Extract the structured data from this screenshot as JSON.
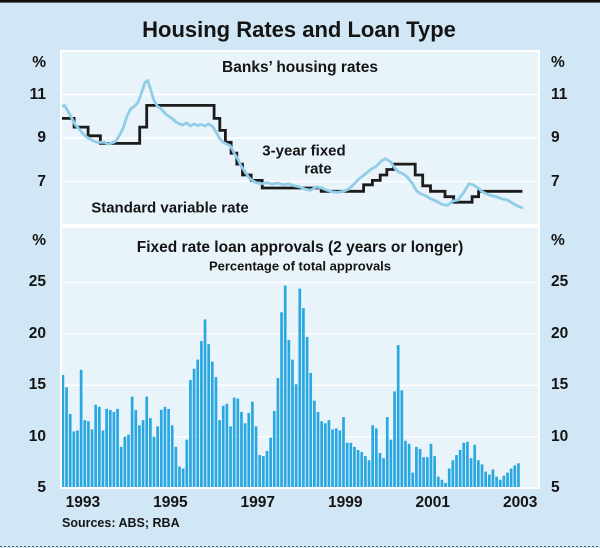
{
  "figure": {
    "title": "Housing Rates and Loan Type",
    "sources": "Sources: ABS; RBA",
    "unit": "%"
  },
  "colors": {
    "background": "#d2e7f5",
    "plot_background": "#e9f3fa",
    "gridline": "#ffffff",
    "bar": "#29a7e0",
    "fixed_rate_line": "#8fcde9",
    "variable_rate_line": "#1c1c1c",
    "text": "#141414",
    "top_border": "#111111"
  },
  "x_axis": {
    "tick_labels": [
      "1993",
      "1995",
      "1997",
      "1999",
      "2001",
      "2003"
    ],
    "tick_years": [
      1993,
      1995,
      1997,
      1999,
      2001,
      2003
    ],
    "xlim": [
      1993.0,
      2003.93
    ]
  },
  "chart_data": [
    {
      "panel": "top",
      "type": "line",
      "title": "Banks’ housing rates",
      "unit": "%",
      "ylim": [
        5,
        13
      ],
      "yticks": [
        7,
        9,
        11
      ],
      "grid": true,
      "series_labels": {
        "fixed_line1": "3-year fixed",
        "fixed_line2": "rate",
        "svr": "Standard variable rate"
      },
      "series": [
        {
          "name": "Standard variable rate",
          "style": "step",
          "color": "#1c1c1c",
          "points": [
            [
              1993.0,
              9.9
            ],
            [
              1993.3,
              9.5
            ],
            [
              1993.62,
              9.1
            ],
            [
              1993.9,
              8.75
            ],
            [
              1994.8,
              9.5
            ],
            [
              1994.96,
              10.5
            ],
            [
              1996.5,
              9.9
            ],
            [
              1996.63,
              9.35
            ],
            [
              1996.76,
              8.8
            ],
            [
              1996.89,
              8.3
            ],
            [
              1997.02,
              7.8
            ],
            [
              1997.15,
              7.3
            ],
            [
              1997.35,
              7.05
            ],
            [
              1997.6,
              6.7
            ],
            [
              1998.95,
              6.55
            ],
            [
              1999.92,
              6.85
            ],
            [
              2000.12,
              7.05
            ],
            [
              2000.3,
              7.3
            ],
            [
              2000.45,
              7.55
            ],
            [
              2000.6,
              7.8
            ],
            [
              2001.1,
              7.3
            ],
            [
              2001.27,
              6.8
            ],
            [
              2001.45,
              6.55
            ],
            [
              2001.78,
              6.3
            ],
            [
              2001.98,
              6.05
            ],
            [
              2002.4,
              6.3
            ],
            [
              2002.55,
              6.55
            ],
            [
              2003.55,
              6.55
            ]
          ]
        },
        {
          "name": "3-year fixed rate",
          "style": "smooth",
          "color": "#8fcde9",
          "points": [
            [
              1993.0,
              10.45
            ],
            [
              1993.08,
              10.5
            ],
            [
              1993.17,
              10.2
            ],
            [
              1993.25,
              9.9
            ],
            [
              1993.33,
              9.6
            ],
            [
              1993.42,
              9.4
            ],
            [
              1993.5,
              9.2
            ],
            [
              1993.58,
              9.05
            ],
            [
              1993.67,
              8.95
            ],
            [
              1993.75,
              8.85
            ],
            [
              1993.83,
              8.8
            ],
            [
              1994.0,
              8.8
            ],
            [
              1994.08,
              8.72
            ],
            [
              1994.17,
              8.78
            ],
            [
              1994.25,
              8.85
            ],
            [
              1994.33,
              9.1
            ],
            [
              1994.42,
              9.45
            ],
            [
              1994.5,
              9.95
            ],
            [
              1994.58,
              10.3
            ],
            [
              1994.67,
              10.45
            ],
            [
              1994.75,
              10.6
            ],
            [
              1994.83,
              11.0
            ],
            [
              1994.92,
              11.55
            ],
            [
              1994.98,
              11.65
            ],
            [
              1995.04,
              11.3
            ],
            [
              1995.12,
              10.75
            ],
            [
              1995.21,
              10.45
            ],
            [
              1995.29,
              10.35
            ],
            [
              1995.37,
              10.15
            ],
            [
              1995.46,
              10.0
            ],
            [
              1995.54,
              9.9
            ],
            [
              1995.62,
              9.75
            ],
            [
              1995.71,
              9.65
            ],
            [
              1995.79,
              9.6
            ],
            [
              1995.87,
              9.7
            ],
            [
              1995.96,
              9.55
            ],
            [
              1996.04,
              9.65
            ],
            [
              1996.12,
              9.58
            ],
            [
              1996.21,
              9.62
            ],
            [
              1996.29,
              9.55
            ],
            [
              1996.37,
              9.65
            ],
            [
              1996.46,
              9.55
            ],
            [
              1996.54,
              9.3
            ],
            [
              1996.62,
              9.0
            ],
            [
              1996.71,
              8.8
            ],
            [
              1996.79,
              8.72
            ],
            [
              1996.87,
              8.65
            ],
            [
              1996.96,
              8.3
            ],
            [
              1997.04,
              8.05
            ],
            [
              1997.12,
              7.7
            ],
            [
              1997.21,
              7.45
            ],
            [
              1997.29,
              7.2
            ],
            [
              1997.37,
              7.05
            ],
            [
              1997.46,
              6.95
            ],
            [
              1997.58,
              6.9
            ],
            [
              1997.71,
              6.95
            ],
            [
              1997.83,
              6.88
            ],
            [
              1997.96,
              6.93
            ],
            [
              1998.08,
              6.85
            ],
            [
              1998.21,
              6.9
            ],
            [
              1998.33,
              6.8
            ],
            [
              1998.46,
              6.75
            ],
            [
              1998.58,
              6.65
            ],
            [
              1998.71,
              6.6
            ],
            [
              1998.83,
              6.75
            ],
            [
              1998.96,
              6.7
            ],
            [
              1999.08,
              6.6
            ],
            [
              1999.21,
              6.52
            ],
            [
              1999.33,
              6.5
            ],
            [
              1999.46,
              6.55
            ],
            [
              1999.58,
              6.65
            ],
            [
              1999.71,
              6.9
            ],
            [
              1999.83,
              7.15
            ],
            [
              1999.96,
              7.35
            ],
            [
              2000.08,
              7.55
            ],
            [
              2000.21,
              7.7
            ],
            [
              2000.33,
              7.95
            ],
            [
              2000.42,
              8.05
            ],
            [
              2000.54,
              7.9
            ],
            [
              2000.62,
              7.65
            ],
            [
              2000.71,
              7.45
            ],
            [
              2000.83,
              7.35
            ],
            [
              2000.92,
              7.2
            ],
            [
              2001.04,
              6.9
            ],
            [
              2001.12,
              6.6
            ],
            [
              2001.21,
              6.45
            ],
            [
              2001.33,
              6.35
            ],
            [
              2001.46,
              6.2
            ],
            [
              2001.58,
              6.1
            ],
            [
              2001.71,
              5.95
            ],
            [
              2001.83,
              5.9
            ],
            [
              2001.96,
              6.1
            ],
            [
              2002.08,
              6.15
            ],
            [
              2002.21,
              6.5
            ],
            [
              2002.33,
              6.9
            ],
            [
              2002.42,
              6.85
            ],
            [
              2002.54,
              6.7
            ],
            [
              2002.62,
              6.55
            ],
            [
              2002.71,
              6.45
            ],
            [
              2002.83,
              6.35
            ],
            [
              2002.96,
              6.3
            ],
            [
              2003.08,
              6.2
            ],
            [
              2003.21,
              6.15
            ],
            [
              2003.33,
              6.0
            ],
            [
              2003.46,
              5.85
            ],
            [
              2003.54,
              5.8
            ]
          ]
        }
      ]
    },
    {
      "panel": "bottom",
      "type": "bar",
      "title": "Fixed rate loan approvals (2 years or longer)",
      "subtitle": "Percentage of total approvals",
      "unit": "%",
      "ylim": [
        5,
        30.4
      ],
      "yticks": [
        5,
        10,
        15,
        20,
        25
      ],
      "grid": true,
      "bar_color": "#29a7e0",
      "bars": {
        "frequency": "monthly",
        "start": "1993-01",
        "end": "2003-06",
        "values": [
          16.0,
          14.8,
          12.2,
          10.5,
          10.6,
          16.5,
          11.6,
          11.5,
          10.7,
          13.1,
          12.9,
          10.6,
          12.7,
          12.6,
          12.4,
          12.7,
          9.0,
          10.0,
          10.2,
          13.9,
          12.6,
          11.1,
          11.6,
          13.9,
          11.8,
          10.0,
          11.0,
          12.6,
          12.9,
          12.7,
          11.1,
          9.0,
          7.1,
          6.9,
          9.7,
          15.5,
          16.6,
          17.5,
          19.3,
          21.4,
          19.0,
          17.3,
          15.8,
          11.6,
          13.0,
          13.2,
          11.0,
          13.8,
          13.7,
          12.4,
          11.3,
          12.3,
          13.4,
          11.0,
          8.2,
          8.1,
          8.6,
          9.9,
          12.5,
          15.7,
          22.1,
          24.7,
          19.4,
          17.5,
          15.1,
          24.4,
          22.5,
          19.7,
          16.2,
          13.5,
          12.4,
          11.5,
          11.3,
          11.6,
          10.7,
          10.8,
          10.6,
          11.9,
          9.4,
          9.4,
          9.0,
          8.7,
          8.5,
          8.1,
          7.7,
          11.1,
          10.8,
          8.4,
          7.9,
          11.9,
          9.7,
          14.4,
          18.9,
          14.5,
          9.6,
          9.3,
          6.5,
          9.0,
          8.8,
          8.0,
          8.0,
          9.3,
          8.1,
          6.1,
          5.8,
          5.5,
          6.9,
          7.7,
          8.2,
          8.7,
          9.4,
          9.5,
          7.9,
          9.2,
          7.7,
          7.3,
          6.6,
          6.3,
          6.8,
          6.1,
          5.8,
          6.2,
          6.5,
          6.9,
          7.2,
          7.4
        ]
      }
    }
  ]
}
